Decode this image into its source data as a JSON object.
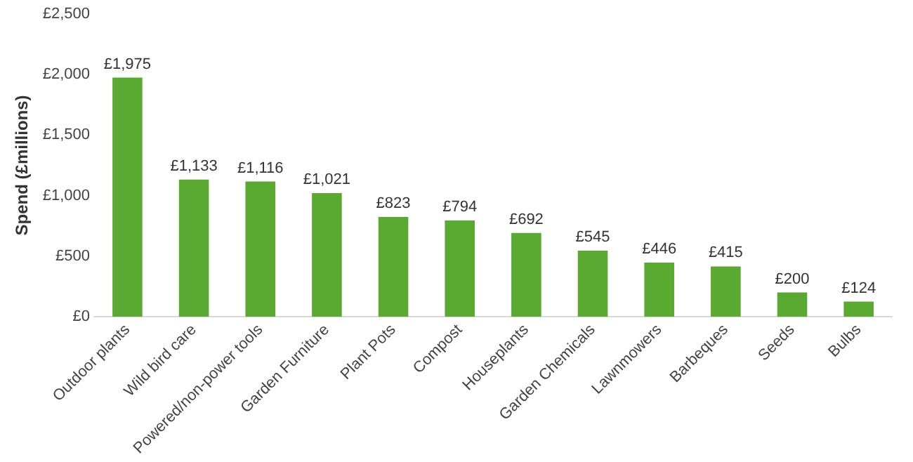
{
  "chart_data": {
    "type": "bar",
    "ylabel": "Spend (£millions)",
    "categories": [
      "Outdoor plants",
      "Wild bird care",
      "Powered/non-power tools",
      "Garden Furniture",
      "Plant Pots",
      "Compost",
      "Houseplants",
      "Garden Chemicals",
      "Lawnmowers",
      "Barbeques",
      "Seeds",
      "Bulbs"
    ],
    "values": [
      1975,
      1133,
      1116,
      1021,
      823,
      794,
      692,
      545,
      446,
      415,
      200,
      124
    ],
    "value_labels": [
      "£1,975",
      "£1,133",
      "£1,116",
      "£1,021",
      "£823",
      "£794",
      "£692",
      "£545",
      "£446",
      "£415",
      "£200",
      "£124"
    ],
    "color": "#5aaa32",
    "ylim": [
      0,
      2500
    ],
    "yticks": [
      {
        "value": 0,
        "label": "£0"
      },
      {
        "value": 500,
        "label": "£500"
      },
      {
        "value": 1000,
        "label": "£1,000"
      },
      {
        "value": 1500,
        "label": "£1,500"
      },
      {
        "value": 2000,
        "label": "£2,000"
      },
      {
        "value": 2500,
        "label": "£2,500"
      }
    ],
    "grid": false,
    "legend": false
  }
}
